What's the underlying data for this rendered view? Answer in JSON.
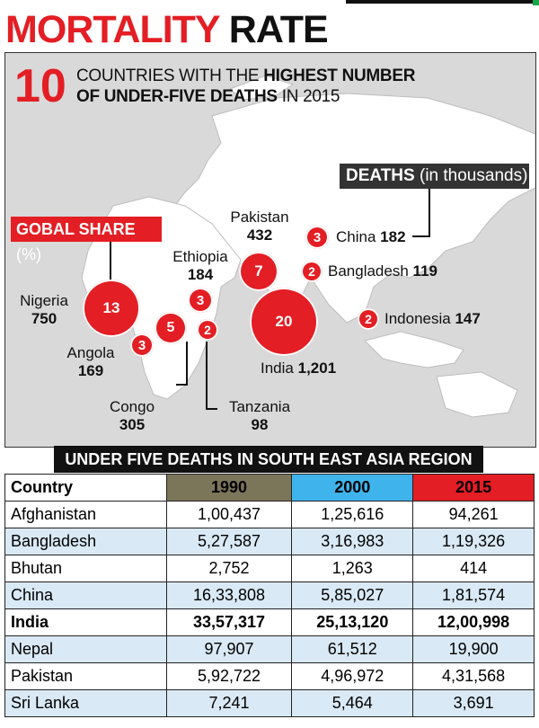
{
  "header": {
    "title_red": "MORTALITY",
    "title_black": "RATE"
  },
  "intro": {
    "number": "10",
    "line1_plain": "COUNTRIES WITH THE",
    "line1_bold": "HIGHEST NUMBER",
    "line2_bold": "OF UNDER-FIVE DEATHS",
    "line2_plain": "IN 2015"
  },
  "deaths_label": {
    "bold": "DEATHS",
    "plain": "(in thousands)"
  },
  "share_label": {
    "bold": "GOBAL SHARE",
    "plain": "(%)"
  },
  "countries": [
    {
      "name": "Nigeria",
      "deaths": "750",
      "share": "13"
    },
    {
      "name": "Angola",
      "deaths": "169",
      "share": "3"
    },
    {
      "name": "Congo",
      "deaths": "305",
      "share": "5"
    },
    {
      "name": "Tanzania",
      "deaths": "98",
      "share": "2"
    },
    {
      "name": "Ethiopia",
      "deaths": "184",
      "share": "3"
    },
    {
      "name": "Pakistan",
      "deaths": "432",
      "share": "7"
    },
    {
      "name": "India",
      "deaths": "1,201",
      "share": "20"
    },
    {
      "name": "China",
      "deaths": "182",
      "share": "3"
    },
    {
      "name": "Bangladesh",
      "deaths": "119",
      "share": "2"
    },
    {
      "name": "Indonesia",
      "deaths": "147",
      "share": "2"
    }
  ],
  "table": {
    "title": "UNDER FIVE DEATHS IN SOUTH EAST ASIA REGION",
    "headers": [
      "Country",
      "1990",
      "2000",
      "2015"
    ],
    "colors": {
      "1990": "#7b7559",
      "2000": "#3fb4ec",
      "2015": "#e31e24"
    },
    "rows": [
      [
        "Afghanistan",
        "1,00,437",
        "1,25,616",
        "94,261"
      ],
      [
        "Bangladesh",
        "5,27,587",
        "3,16,983",
        "1,19,326"
      ],
      [
        "Bhutan",
        "2,752",
        "1,263",
        "414"
      ],
      [
        "China",
        "16,33,808",
        "5,85,027",
        "1,81,574"
      ],
      [
        "India",
        "33,57,317",
        "25,13,120",
        "12,00,998"
      ],
      [
        "Nepal",
        "97,907",
        "61,512",
        "19,900"
      ],
      [
        "Pakistan",
        "5,92,722",
        "4,96,972",
        "4,31,568"
      ],
      [
        "Sri Lanka",
        "7,241",
        "5,464",
        "3,691"
      ]
    ]
  }
}
